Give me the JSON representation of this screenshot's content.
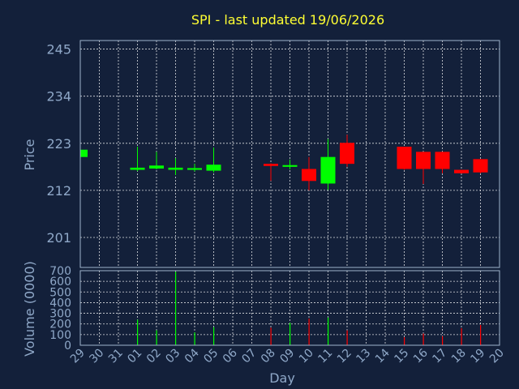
{
  "chart_data": {
    "title": "SPI - last updated 19/06/2026",
    "type": "candlestick",
    "x": [
      "29",
      "30",
      "31",
      "01",
      "02",
      "03",
      "04",
      "05",
      "06",
      "07",
      "08",
      "09",
      "10",
      "11",
      "12",
      "13",
      "14",
      "15",
      "16",
      "17",
      "18",
      "19",
      "20"
    ],
    "xlabel": "Day",
    "price": {
      "ylabel": "Price",
      "ylim": [
        194,
        247
      ],
      "yticks": [
        201,
        212,
        223,
        234,
        245
      ],
      "grid": true,
      "candles": [
        {
          "x": "29",
          "open": 219.8,
          "close": 221.5,
          "high": 221.6,
          "low": 219.8
        },
        {
          "x": "01",
          "open": 216.8,
          "close": 217.3,
          "high": 222.2,
          "low": 216.5
        },
        {
          "x": "02",
          "open": 217.1,
          "close": 217.8,
          "high": 221.0,
          "low": 216.9
        },
        {
          "x": "03",
          "open": 216.8,
          "close": 217.3,
          "high": 219.5,
          "low": 215.6
        },
        {
          "x": "04",
          "open": 216.8,
          "close": 217.2,
          "high": 218.2,
          "low": 216.4
        },
        {
          "x": "05",
          "open": 216.6,
          "close": 218.0,
          "high": 222.0,
          "low": 216.2
        },
        {
          "x": "08",
          "open": 218.2,
          "close": 217.7,
          "high": 218.3,
          "low": 214.2
        },
        {
          "x": "09",
          "open": 217.5,
          "close": 217.9,
          "high": 219.2,
          "low": 216.9
        },
        {
          "x": "10",
          "open": 217.0,
          "close": 214.2,
          "high": 219.8,
          "low": 212.0
        },
        {
          "x": "11",
          "open": 213.6,
          "close": 219.8,
          "high": 224.0,
          "low": 212.1
        },
        {
          "x": "12",
          "open": 223.1,
          "close": 218.2,
          "high": 225.0,
          "low": 217.5
        },
        {
          "x": "15",
          "open": 222.2,
          "close": 217.0,
          "high": 222.2,
          "low": 216.8
        },
        {
          "x": "16",
          "open": 221.0,
          "close": 217.0,
          "high": 221.0,
          "low": 213.5
        },
        {
          "x": "17",
          "open": 221.0,
          "close": 217.0,
          "high": 221.0,
          "low": 216.0
        },
        {
          "x": "18",
          "open": 216.8,
          "close": 216.0,
          "high": 216.8,
          "low": 215.9
        },
        {
          "x": "19",
          "open": 219.3,
          "close": 216.2,
          "high": 219.3,
          "low": 216.0
        }
      ]
    },
    "volume": {
      "ylabel": "Volume (0000)",
      "ylim": [
        0,
        700
      ],
      "yticks": [
        0,
        100,
        200,
        300,
        400,
        500,
        600,
        700
      ],
      "grid": true,
      "bars": [
        {
          "x": "01",
          "value": 240,
          "direction": "up"
        },
        {
          "x": "02",
          "value": 140,
          "direction": "up"
        },
        {
          "x": "03",
          "value": 690,
          "direction": "up"
        },
        {
          "x": "04",
          "value": 120,
          "direction": "up"
        },
        {
          "x": "05",
          "value": 170,
          "direction": "up"
        },
        {
          "x": "08",
          "value": 165,
          "direction": "down"
        },
        {
          "x": "09",
          "value": 210,
          "direction": "up"
        },
        {
          "x": "10",
          "value": 250,
          "direction": "down"
        },
        {
          "x": "11",
          "value": 260,
          "direction": "up"
        },
        {
          "x": "12",
          "value": 140,
          "direction": "down"
        },
        {
          "x": "15",
          "value": 75,
          "direction": "down"
        },
        {
          "x": "16",
          "value": 110,
          "direction": "down"
        },
        {
          "x": "17",
          "value": 85,
          "direction": "down"
        },
        {
          "x": "18",
          "value": 160,
          "direction": "down"
        },
        {
          "x": "19",
          "value": 190,
          "direction": "down"
        }
      ]
    },
    "colors": {
      "up": "#00ff00",
      "down": "#ff0000",
      "background": "#13203a",
      "title": "#ffff33",
      "text": "#8fa8c8",
      "grid": "#ffffff"
    }
  }
}
